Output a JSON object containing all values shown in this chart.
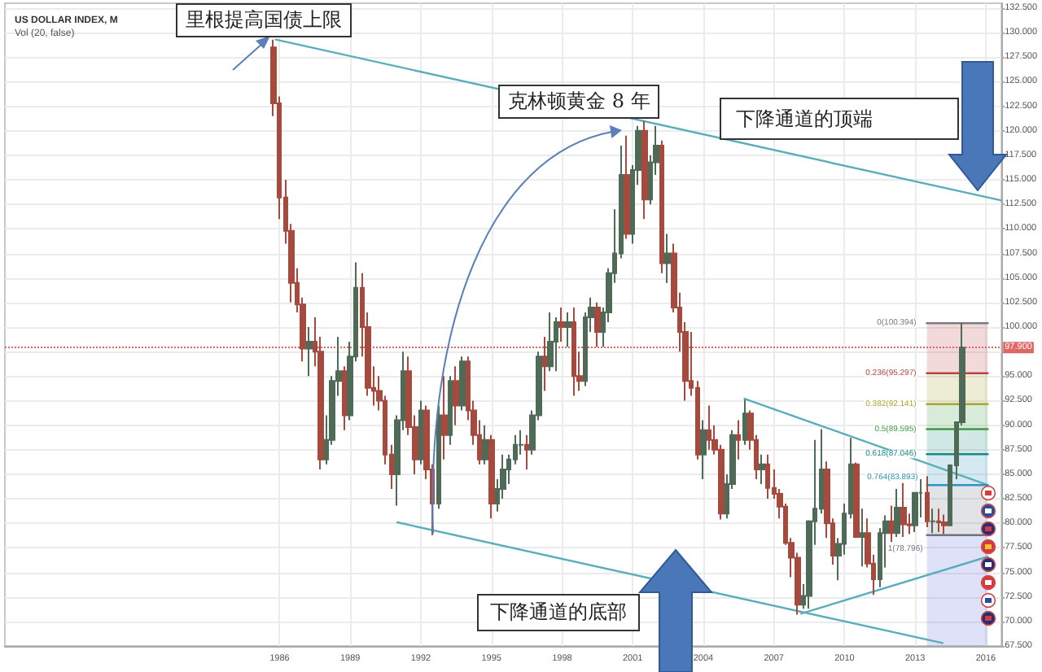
{
  "chart_data": {
    "type": "candlestick",
    "title": "US DOLLAR INDEX, M",
    "subtitle": "Vol (20, false)",
    "annotations": [
      "里根提高国债上限",
      "克林顿黄金 8 年",
      "下降通道的顶端",
      "下降通道的底部"
    ],
    "xlim": [
      "1974-05",
      "2016-09"
    ],
    "xticks": [
      "1986",
      "1989",
      "1992",
      "1995",
      "1998",
      "2001",
      "2004",
      "2007",
      "2010",
      "2013",
      "2016"
    ],
    "ylim": [
      67.5,
      133
    ],
    "yticks": [
      {
        "value": 67.5,
        "label": "67.500"
      },
      {
        "value": 70,
        "label": "70.000"
      },
      {
        "value": 72.5,
        "label": "72.500"
      },
      {
        "value": 75,
        "label": "75.000"
      },
      {
        "value": 77.5,
        "label": "77.500"
      },
      {
        "value": 80,
        "label": "80.000"
      },
      {
        "value": 82.5,
        "label": "82.500"
      },
      {
        "value": 85,
        "label": "85.000"
      },
      {
        "value": 87.5,
        "label": "87.500"
      },
      {
        "value": 90,
        "label": "90.000"
      },
      {
        "value": 92.5,
        "label": "92.500"
      },
      {
        "value": 95,
        "label": "95.000"
      },
      {
        "value": 97.5,
        "label": null
      },
      {
        "value": 100,
        "label": "100.000"
      },
      {
        "value": 102.5,
        "label": "102.500"
      },
      {
        "value": 105,
        "label": "105.000"
      },
      {
        "value": 107.5,
        "label": "107.500"
      },
      {
        "value": 110,
        "label": "110.000"
      },
      {
        "value": 112.5,
        "label": "112.500"
      },
      {
        "value": 115,
        "label": "115.000"
      },
      {
        "value": 117.5,
        "label": "117.500"
      },
      {
        "value": 120,
        "label": "120.000"
      },
      {
        "value": 122.5,
        "label": "122.500"
      },
      {
        "value": 125,
        "label": "125.000"
      },
      {
        "value": 127.5,
        "label": "127.500"
      },
      {
        "value": 130,
        "label": "130.000"
      },
      {
        "value": 132.5,
        "label": "132.500"
      }
    ],
    "grid": true,
    "ref_lines": [
      {
        "axis": "y",
        "value": 97.9,
        "label": "97.900",
        "color": "#e06666",
        "line_style": "dotted"
      }
    ],
    "series": [
      {
        "type": "line",
        "color": "#5aaeb9",
        "x": [
          "1985-11",
          "2016-09"
        ],
        "values": [
          129.3,
          112.9
        ]
      },
      {
        "type": "line",
        "color": "#5aaeb9",
        "x": [
          "1991-01",
          "2014-03"
        ],
        "values": [
          80.1,
          67.8
        ]
      },
      {
        "type": "line",
        "color": "#5aaeb9",
        "x": [
          "2005-10",
          "2016-02"
        ],
        "values": [
          92.7,
          83.9
        ]
      },
      {
        "type": "line",
        "color": "#5aaeb9",
        "x": [
          "2008-03",
          "2016-02"
        ],
        "values": [
          70.8,
          76.6
        ]
      },
      {
        "type": "line",
        "name": "0(100.394)",
        "color": "#787b86",
        "x": [
          "2013-07",
          "2016-02"
        ],
        "values": [
          100.394,
          100.394
        ]
      },
      {
        "type": "line",
        "name": "0.236(95.297)",
        "color": "#b84440",
        "x": [
          "2013-07",
          "2016-02"
        ],
        "values": [
          95.297,
          95.297
        ],
        "lower": [
          95.297,
          95.297
        ],
        "upper": [
          100.394,
          100.394
        ]
      },
      {
        "type": "line",
        "name": "0.382(92.141)",
        "color": "#a5a530",
        "x": [
          "2013-07",
          "2016-02"
        ],
        "values": [
          92.141,
          92.141
        ],
        "lower": [
          92.141,
          92.141
        ],
        "upper": [
          95.297,
          95.297
        ]
      },
      {
        "type": "line",
        "name": "0.5(89.595)",
        "color": "#3f9a43",
        "x": [
          "2013-07",
          "2016-02"
        ],
        "values": [
          89.595,
          89.595
        ],
        "lower": [
          89.595,
          89.595
        ],
        "upper": [
          92.141,
          92.141
        ]
      },
      {
        "type": "line",
        "name": "0.618(87.046)",
        "color": "#178a82",
        "x": [
          "2013-07",
          "2016-02"
        ],
        "values": [
          87.046,
          87.046
        ],
        "lower": [
          87.046,
          87.046
        ],
        "upper": [
          89.595,
          89.595
        ]
      },
      {
        "type": "line",
        "name": "0.764(83.893)",
        "color": "#2f93bf",
        "x": [
          "2013-07",
          "2016-02"
        ],
        "values": [
          83.893,
          83.893
        ],
        "lower": [
          83.893,
          83.893
        ],
        "upper": [
          87.046,
          87.046
        ]
      },
      {
        "type": "line",
        "name": "1(78.796)",
        "color": "#6f7280",
        "x": [
          "2013-07",
          "2016-02"
        ],
        "values": [
          78.796,
          78.796
        ],
        "lower": [
          78.796,
          78.796
        ],
        "upper": [
          83.893,
          83.893
        ]
      },
      {
        "type": "line",
        "color": "#5c6bd6",
        "x": [
          "2013-07",
          "2016-02"
        ],
        "values": [
          null,
          null
        ],
        "lower": [
          67.5,
          67.5
        ],
        "upper": [
          78.796,
          78.796
        ]
      },
      {
        "x": [
          "1985-10",
          "1986-01",
          "1986-04",
          "1986-07",
          "1986-10",
          "1987-01",
          "1987-04",
          "1987-07",
          "1987-10",
          "1988-01",
          "1988-04",
          "1988-07",
          "1988-10",
          "1989-01",
          "1989-04",
          "1989-07",
          "1989-10",
          "1990-01",
          "1990-04",
          "1990-07",
          "1990-10",
          "1991-01",
          "1991-04",
          "1991-07",
          "1991-10",
          "1992-01",
          "1992-04",
          "1992-07",
          "1992-10",
          "1993-01",
          "1993-04",
          "1993-07",
          "1993-10",
          "1994-01",
          "1994-04",
          "1994-07",
          "1994-10",
          "1995-01",
          "1995-04",
          "1995-07",
          "1995-10",
          "1996-01",
          "1996-04",
          "1996-07",
          "1996-10",
          "1997-01",
          "1997-04",
          "1997-07",
          "1997-10",
          "1998-01",
          "1998-04",
          "1998-07",
          "1998-10",
          "1999-01",
          "1999-04",
          "1999-07",
          "1999-10",
          "2000-01",
          "2000-04",
          "2000-07",
          "2000-10",
          "2001-01",
          "2001-04",
          "2001-07",
          "2001-10",
          "2002-01",
          "2002-04",
          "2002-07",
          "2002-10",
          "2003-01",
          "2003-04",
          "2003-07",
          "2003-10",
          "2004-01",
          "2004-04",
          "2004-07",
          "2004-10",
          "2005-01",
          "2005-04",
          "2005-07",
          "2005-10",
          "2006-01",
          "2006-04",
          "2006-07",
          "2006-10",
          "2007-01",
          "2007-04",
          "2007-07",
          "2007-10",
          "2008-01",
          "2008-04",
          "2008-07",
          "2008-10",
          "2009-01",
          "2009-04",
          "2009-07",
          "2009-10",
          "2010-01",
          "2010-04",
          "2010-07",
          "2010-10",
          "2011-01",
          "2011-04",
          "2011-07",
          "2011-10",
          "2012-01",
          "2012-04",
          "2012-07",
          "2012-10",
          "2013-01",
          "2013-04",
          "2013-07",
          "2013-10",
          "2014-01",
          "2014-04",
          "2014-07",
          "2014-10",
          "2015-01"
        ],
        "ohlc": [
          [
            128.5,
            129.3,
            121.5,
            122.8
          ],
          [
            122.8,
            123.5,
            111.0,
            113.2
          ],
          [
            113.2,
            115.0,
            108.5,
            109.8
          ],
          [
            109.8,
            110.5,
            102.5,
            104.5
          ],
          [
            104.5,
            106.0,
            101.5,
            102.3
          ],
          [
            102.3,
            103.0,
            96.5,
            97.8
          ],
          [
            97.8,
            100.0,
            95.0,
            98.5
          ],
          [
            98.5,
            101.0,
            96.0,
            97.5
          ],
          [
            97.5,
            99.0,
            85.5,
            86.5
          ],
          [
            86.5,
            91.0,
            86.0,
            88.5
          ],
          [
            88.5,
            95.0,
            88.0,
            94.5
          ],
          [
            94.5,
            99.0,
            93.0,
            95.5
          ],
          [
            95.5,
            96.0,
            89.5,
            91.0
          ],
          [
            91.0,
            98.5,
            90.5,
            97.0
          ],
          [
            97.0,
            106.6,
            96.5,
            104.0
          ],
          [
            104.0,
            105.5,
            97.0,
            100.0
          ],
          [
            100.0,
            101.5,
            93.0,
            93.8
          ],
          [
            93.8,
            96.0,
            92.0,
            93.5
          ],
          [
            93.5,
            95.0,
            91.5,
            92.5
          ],
          [
            92.5,
            93.0,
            86.0,
            87.0
          ],
          [
            87.0,
            88.0,
            83.5,
            85.0
          ],
          [
            85.0,
            91.0,
            81.8,
            90.5
          ],
          [
            90.5,
            97.5,
            89.5,
            95.5
          ],
          [
            95.5,
            97.0,
            89.0,
            89.8
          ],
          [
            89.8,
            91.0,
            85.0,
            86.5
          ],
          [
            86.5,
            92.5,
            86.0,
            91.5
          ],
          [
            91.5,
            92.0,
            84.5,
            85.5
          ],
          [
            85.5,
            86.0,
            78.8,
            82.0
          ],
          [
            82.0,
            92.0,
            81.5,
            91.0
          ],
          [
            91.0,
            95.0,
            86.5,
            89.0
          ],
          [
            89.0,
            95.0,
            88.0,
            94.5
          ],
          [
            94.5,
            96.0,
            90.0,
            92.0
          ],
          [
            92.0,
            97.0,
            91.5,
            96.5
          ],
          [
            96.5,
            97.0,
            90.5,
            91.5
          ],
          [
            91.5,
            92.5,
            88.0,
            89.0
          ],
          [
            89.0,
            90.5,
            86.0,
            86.5
          ],
          [
            86.5,
            90.0,
            86.0,
            88.5
          ],
          [
            88.5,
            89.0,
            80.5,
            82.0
          ],
          [
            82.0,
            84.5,
            81.2,
            83.5
          ],
          [
            83.5,
            87.0,
            82.5,
            85.5
          ],
          [
            85.5,
            87.0,
            84.0,
            86.5
          ],
          [
            86.5,
            89.0,
            86.0,
            88.0
          ],
          [
            88.0,
            89.5,
            87.0,
            88.0
          ],
          [
            88.0,
            89.0,
            85.5,
            87.5
          ],
          [
            87.5,
            91.5,
            87.0,
            91.0
          ],
          [
            91.0,
            97.5,
            90.5,
            97.0
          ],
          [
            97.0,
            99.0,
            93.5,
            96.0
          ],
          [
            96.0,
            101.5,
            95.5,
            98.5
          ],
          [
            98.5,
            101.0,
            95.5,
            100.5
          ],
          [
            100.5,
            102.0,
            98.5,
            100.0
          ],
          [
            100.0,
            101.5,
            98.0,
            100.5
          ],
          [
            100.5,
            102.0,
            93.0,
            95.0
          ],
          [
            95.0,
            97.5,
            93.5,
            94.5
          ],
          [
            94.5,
            101.5,
            94.0,
            101.0
          ],
          [
            101.0,
            103.0,
            99.5,
            102.0
          ],
          [
            102.0,
            102.5,
            98.0,
            99.5
          ],
          [
            99.5,
            102.0,
            98.0,
            101.5
          ],
          [
            101.5,
            106.0,
            100.5,
            105.5
          ],
          [
            105.5,
            112.0,
            104.5,
            107.5
          ],
          [
            107.5,
            118.5,
            107.0,
            115.5
          ],
          [
            115.5,
            119.5,
            109.0,
            109.5
          ],
          [
            109.5,
            116.5,
            108.5,
            116.0
          ],
          [
            116.0,
            120.5,
            114.5,
            120.0
          ],
          [
            120.0,
            121.0,
            111.0,
            113.0
          ],
          [
            113.0,
            117.5,
            112.5,
            116.8
          ],
          [
            116.8,
            120.5,
            115.5,
            118.5
          ],
          [
            118.5,
            119.0,
            105.5,
            106.5
          ],
          [
            106.5,
            109.5,
            104.5,
            107.5
          ],
          [
            107.5,
            108.5,
            101.5,
            102.0
          ],
          [
            102.0,
            103.5,
            97.5,
            99.5
          ],
          [
            99.5,
            100.5,
            92.5,
            94.5
          ],
          [
            94.5,
            99.5,
            93.0,
            93.8
          ],
          [
            93.8,
            94.5,
            86.5,
            87.0
          ],
          [
            87.0,
            90.5,
            84.5,
            89.5
          ],
          [
            89.5,
            92.0,
            87.5,
            88.5
          ],
          [
            88.5,
            90.0,
            87.0,
            87.5
          ],
          [
            87.5,
            88.0,
            80.4,
            81.0
          ],
          [
            81.0,
            85.0,
            80.5,
            84.0
          ],
          [
            84.0,
            89.5,
            83.5,
            89.0
          ],
          [
            89.0,
            90.5,
            86.5,
            88.5
          ],
          [
            88.5,
            92.6,
            88.0,
            91.2
          ],
          [
            91.2,
            91.5,
            87.5,
            88.5
          ],
          [
            88.5,
            89.0,
            84.5,
            85.5
          ],
          [
            85.5,
            87.0,
            84.0,
            86.0
          ],
          [
            86.0,
            87.0,
            82.5,
            83.6
          ],
          [
            83.6,
            85.5,
            82.5,
            83.0
          ],
          [
            83.0,
            83.5,
            80.5,
            81.7
          ],
          [
            81.7,
            82.0,
            77.8,
            78.0
          ],
          [
            78.0,
            78.5,
            74.5,
            76.5
          ],
          [
            76.5,
            77.0,
            70.7,
            71.7
          ],
          [
            71.7,
            73.8,
            71.3,
            72.6
          ],
          [
            72.6,
            80.3,
            71.3,
            80.2
          ],
          [
            80.2,
            88.5,
            77.8,
            81.5
          ],
          [
            81.5,
            89.6,
            81.0,
            85.5
          ],
          [
            85.5,
            86.3,
            78.5,
            80.0
          ],
          [
            80.0,
            80.5,
            75.8,
            76.7
          ],
          [
            76.7,
            78.5,
            74.2,
            77.9
          ],
          [
            77.9,
            82.0,
            76.8,
            81.0
          ],
          [
            81.0,
            88.7,
            80.5,
            86.0
          ],
          [
            86.0,
            86.2,
            78.5,
            78.6
          ],
          [
            78.6,
            81.5,
            75.6,
            79.0
          ],
          [
            79.0,
            80.5,
            75.5,
            75.9
          ],
          [
            75.9,
            76.8,
            72.7,
            74.3
          ],
          [
            74.3,
            79.5,
            73.5,
            79.0
          ],
          [
            79.0,
            80.8,
            75.5,
            80.2
          ],
          [
            80.2,
            81.8,
            78.1,
            79.0
          ],
          [
            79.0,
            83.5,
            78.6,
            81.6
          ],
          [
            81.6,
            84.1,
            78.6,
            79.9
          ],
          [
            79.9,
            81.0,
            78.9,
            79.8
          ],
          [
            79.8,
            83.2,
            79.1,
            83.1
          ],
          [
            83.1,
            84.5,
            80.6,
            83.1
          ],
          [
            83.1,
            84.8,
            79.6,
            80.2
          ],
          [
            80.2,
            81.5,
            79.0,
            80.2
          ],
          [
            80.2,
            81.5,
            79.1,
            80.1
          ],
          [
            80.1,
            80.9,
            78.9,
            79.8
          ],
          [
            79.8,
            86.0,
            79.7,
            85.9
          ],
          [
            85.9,
            90.3,
            84.5,
            90.3
          ],
          [
            90.3,
            100.394,
            90.0,
            97.9
          ]
        ],
        "colors": [
          "#a44a3f",
          "#a44a3f",
          "#a44a3f",
          "#a44a3f",
          "#a44a3f",
          "#a44a3f",
          "#4f6b58",
          "#a44a3f",
          "#a44a3f",
          "#4f6b58",
          "#4f6b58",
          "#4f6b58",
          "#a44a3f",
          "#4f6b58",
          "#4f6b58",
          "#a44a3f",
          "#a44a3f",
          "#a44a3f",
          "#a44a3f",
          "#a44a3f",
          "#a44a3f",
          "#4f6b58",
          "#4f6b58",
          "#a44a3f",
          "#a44a3f",
          "#4f6b58",
          "#a44a3f",
          "#a44a3f",
          "#4f6b58",
          "#a44a3f",
          "#4f6b58",
          "#a44a3f",
          "#4f6b58",
          "#a44a3f",
          "#a44a3f",
          "#a44a3f",
          "#4f6b58",
          "#a44a3f",
          "#4f6b58",
          "#4f6b58",
          "#4f6b58",
          "#4f6b58",
          "#4f6b58",
          "#a44a3f",
          "#4f6b58",
          "#4f6b58",
          "#a44a3f",
          "#4f6b58",
          "#4f6b58",
          "#a44a3f",
          "#4f6b58",
          "#a44a3f",
          "#a44a3f",
          "#4f6b58",
          "#4f6b58",
          "#a44a3f",
          "#4f6b58",
          "#4f6b58",
          "#4f6b58",
          "#4f6b58",
          "#a44a3f",
          "#4f6b58",
          "#4f6b58",
          "#a44a3f",
          "#4f6b58",
          "#4f6b58",
          "#a44a3f",
          "#4f6b58",
          "#a44a3f",
          "#a44a3f",
          "#a44a3f",
          "#a44a3f",
          "#a44a3f",
          "#4f6b58",
          "#a44a3f",
          "#a44a3f",
          "#a44a3f",
          "#4f6b58",
          "#4f6b58",
          "#a44a3f",
          "#4f6b58",
          "#a44a3f",
          "#a44a3f",
          "#4f6b58",
          "#a44a3f",
          "#a44a3f",
          "#a44a3f",
          "#a44a3f",
          "#a44a3f",
          "#a44a3f",
          "#4f6b58",
          "#4f6b58",
          "#4f6b58",
          "#4f6b58",
          "#a44a3f",
          "#a44a3f",
          "#4f6b58",
          "#4f6b58",
          "#4f6b58",
          "#a44a3f",
          "#4f6b58",
          "#a44a3f",
          "#a44a3f",
          "#4f6b58",
          "#4f6b58",
          "#a44a3f",
          "#4f6b58",
          "#a44a3f",
          "#a44a3f",
          "#4f6b58",
          "#4f6b58",
          "#a44a3f",
          "#4f6b58",
          "#a44a3f",
          "#a44a3f",
          "#4f6b58",
          "#4f6b58",
          "#4f6b58"
        ]
      }
    ]
  }
}
